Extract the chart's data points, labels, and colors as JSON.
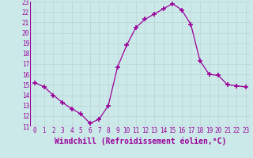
{
  "x": [
    0,
    1,
    2,
    3,
    4,
    5,
    6,
    7,
    8,
    9,
    10,
    11,
    12,
    13,
    14,
    15,
    16,
    17,
    18,
    19,
    20,
    21,
    22,
    23
  ],
  "y": [
    15.2,
    14.8,
    14.0,
    13.3,
    12.7,
    12.2,
    11.3,
    11.7,
    13.0,
    16.7,
    18.8,
    20.5,
    21.3,
    21.8,
    22.3,
    22.8,
    22.2,
    20.8,
    17.3,
    16.0,
    15.9,
    15.0,
    14.9,
    14.8
  ],
  "line_color": "#990099",
  "marker": "+",
  "marker_size": 4,
  "bg_color": "#cce9e9",
  "grid_color": "#c0d8d8",
  "xlabel": "Windchill (Refroidissement éolien,°C)",
  "xlabel_color": "#990099",
  "ylabel_ticks": [
    11,
    12,
    13,
    14,
    15,
    16,
    17,
    18,
    19,
    20,
    21,
    22,
    23
  ],
  "xlim": [
    -0.5,
    23.5
  ],
  "ylim": [
    11,
    23
  ],
  "tick_color": "#990099",
  "tick_fontsize": 5.5,
  "xlabel_fontsize": 7.0
}
